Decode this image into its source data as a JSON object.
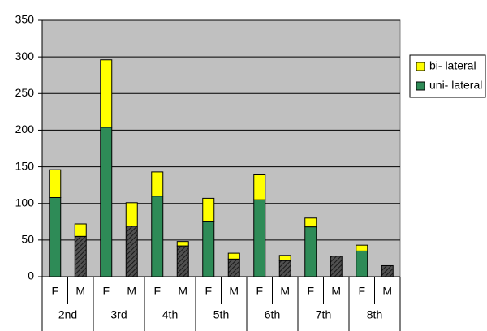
{
  "chart_data": {
    "type": "stacked_bar",
    "categories": [
      "F",
      "M",
      "F",
      "M",
      "F",
      "M",
      "F",
      "M",
      "F",
      "M",
      "F",
      "M",
      "F",
      "M"
    ],
    "groups": [
      "2nd",
      "3rd",
      "4th",
      "5th",
      "6th",
      "7th",
      "8th"
    ],
    "series": [
      {
        "name": "uni- lateral",
        "color": "#2e8b57",
        "values": [
          108,
          55,
          204,
          69,
          110,
          42,
          75,
          24,
          105,
          22,
          68,
          28,
          35,
          15
        ]
      },
      {
        "name": "bi- lateral",
        "color": "#ffff00",
        "values": [
          38,
          17,
          92,
          32,
          33,
          6,
          32,
          8,
          34,
          7,
          12,
          0,
          8,
          0
        ]
      }
    ],
    "ylim": [
      0,
      350
    ],
    "yticks": [
      0,
      50,
      100,
      150,
      200,
      250,
      300,
      350
    ],
    "grid": true,
    "legend": "right"
  }
}
